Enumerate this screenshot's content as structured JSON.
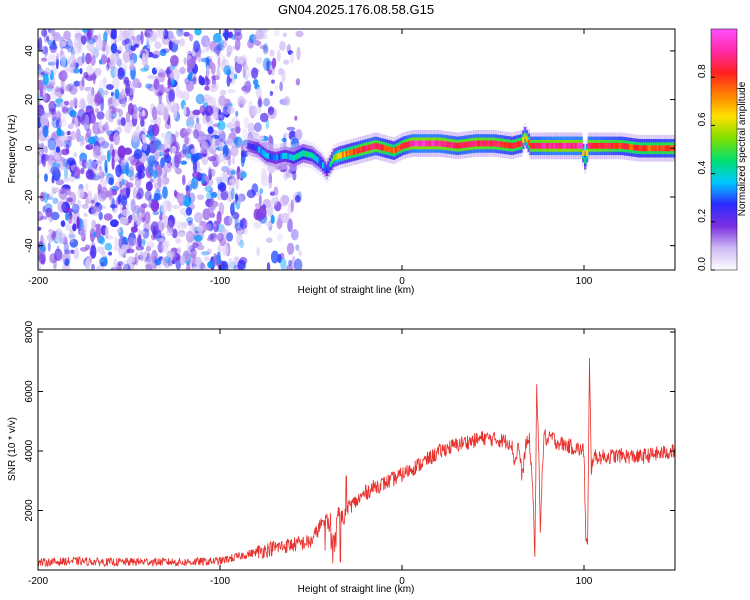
{
  "title": "GN04.2025.176.08.58.G15",
  "colors": {
    "snr_line": "#e8302c",
    "colormap": [
      "#ffffff",
      "#cdb8f4",
      "#7b2fe0",
      "#2b2bff",
      "#00c8ff",
      "#00e070",
      "#7fe000",
      "#ffe000",
      "#ff8000",
      "#ff2020",
      "#ff2aa8",
      "#ff50ff"
    ]
  },
  "chart_data": [
    {
      "type": "heatmap",
      "name": "spectrogram",
      "xlabel": "Height of straight line (km)",
      "ylabel": "Frequency (Hz)",
      "xlim": [
        -200,
        150
      ],
      "ylim": [
        -50,
        49
      ],
      "xticks": [
        -200,
        -100,
        0,
        100
      ],
      "yticks": [
        -40,
        -20,
        0,
        20,
        40
      ],
      "colorbar": {
        "label": "Normalized spectral amplitude",
        "range": [
          0,
          1
        ],
        "ticks": [
          "0.0",
          "0.2",
          "0.4",
          "0.6",
          "0.8"
        ]
      },
      "noise_region_x": [
        -200,
        -62
      ],
      "signal_track": {
        "x": [
          -85,
          -80,
          -75,
          -70,
          -65,
          -60,
          -55,
          -50,
          -45,
          -42,
          -38,
          -35,
          -30,
          -25,
          -20,
          -15,
          -10,
          -5,
          0,
          5,
          10,
          20,
          30,
          40,
          50,
          60,
          65,
          67,
          70,
          80,
          90,
          98,
          100,
          102,
          110,
          120,
          130,
          140,
          150
        ],
        "freq": [
          1,
          0,
          -3,
          -4,
          -3,
          -4,
          -2,
          -3,
          -6,
          -9,
          -4,
          -3,
          -2,
          -1,
          0,
          1,
          0,
          -1,
          1,
          2,
          2,
          2,
          1,
          2,
          2,
          1,
          2,
          5,
          1,
          1,
          1,
          1,
          -5,
          1,
          1,
          1,
          0,
          0,
          0
        ],
        "amplitude": [
          0.25,
          0.3,
          0.35,
          0.3,
          0.35,
          0.4,
          0.45,
          0.4,
          0.35,
          0.3,
          0.55,
          0.65,
          0.75,
          0.8,
          0.85,
          0.85,
          0.8,
          0.75,
          0.8,
          0.9,
          0.92,
          0.9,
          0.85,
          0.88,
          0.85,
          0.8,
          0.8,
          0.55,
          0.85,
          0.9,
          0.92,
          0.9,
          0.5,
          0.88,
          0.85,
          0.8,
          0.78,
          0.8,
          0.82
        ]
      }
    },
    {
      "type": "line",
      "name": "snr",
      "xlabel": "Height of straight line (km)",
      "ylabel": "SNR (10 * v/v)",
      "xlim": [
        -200,
        150
      ],
      "ylim": [
        0,
        8100
      ],
      "xticks": [
        -200,
        -100,
        0,
        100
      ],
      "yticks": [
        2000,
        4000,
        6000,
        8000
      ],
      "x": [
        -200,
        -180,
        -160,
        -140,
        -120,
        -100,
        -90,
        -80,
        -70,
        -60,
        -50,
        -42,
        -40,
        -38,
        -35,
        -32,
        -30,
        -25,
        -20,
        -15,
        -10,
        -5,
        0,
        5,
        10,
        15,
        20,
        25,
        30,
        35,
        40,
        45,
        50,
        55,
        60,
        62,
        64,
        66,
        68,
        70,
        72,
        73,
        74,
        75,
        76,
        78,
        80,
        82,
        85,
        90,
        95,
        100,
        101,
        102,
        103,
        104,
        105,
        110,
        120,
        130,
        140,
        150
      ],
      "y": [
        250,
        300,
        260,
        280,
        260,
        300,
        450,
        600,
        750,
        850,
        950,
        1800,
        1500,
        800,
        2000,
        1700,
        2100,
        2300,
        2600,
        2800,
        2900,
        3050,
        3200,
        3400,
        3550,
        3750,
        3950,
        4100,
        4200,
        4300,
        4350,
        4450,
        4400,
        4350,
        4300,
        3600,
        4250,
        3100,
        4200,
        4350,
        2600,
        300,
        6000,
        4300,
        1500,
        4600,
        4300,
        4500,
        4300,
        4200,
        4100,
        4000,
        1000,
        800,
        7000,
        3400,
        3800,
        3800,
        3850,
        3800,
        3900,
        4000
      ]
    }
  ]
}
